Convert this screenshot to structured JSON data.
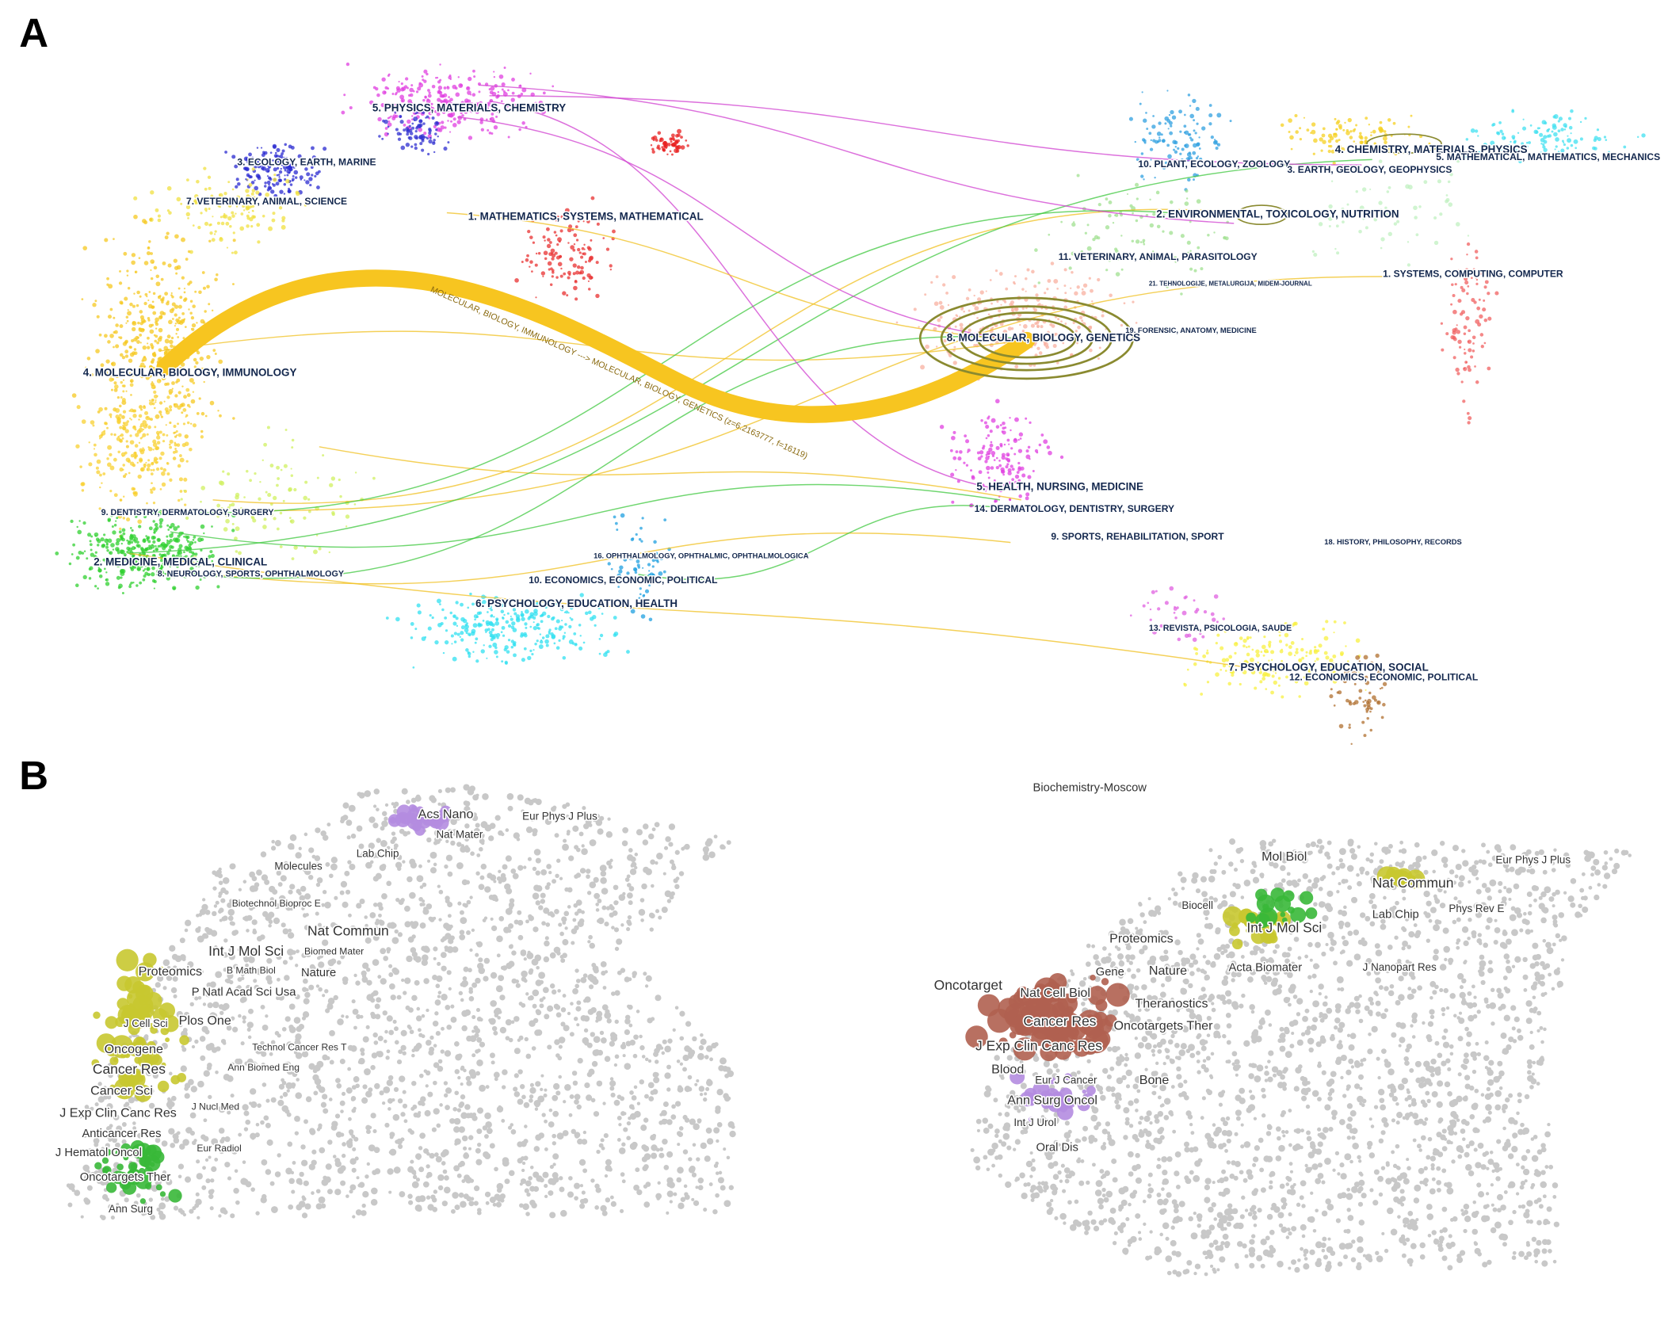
{
  "panel_a": {
    "label": "A",
    "left_clusters": [
      "5. PHYSICS, MATERIALS, CHEMISTRY",
      "3. ECOLOGY, EARTH, MARINE",
      "7. VETERINARY, ANIMAL, SCIENCE",
      "1. MATHEMATICS, SYSTEMS, MATHEMATICAL",
      "4. MOLECULAR, BIOLOGY, IMMUNOLOGY",
      "9. DENTISTRY, DERMATOLOGY, SURGERY",
      "2. MEDICINE, MEDICAL, CLINICAL",
      "8. NEUROLOGY, SPORTS, OPHTHALMOLOGY",
      "16. OPHTHALMOLOGY, OPHTHALMIC, OPHTHALMOLOGICA",
      "10. ECONOMICS, ECONOMIC, POLITICAL",
      "6. PSYCHOLOGY, EDUCATION, HEALTH"
    ],
    "right_clusters": [
      "4. CHEMISTRY, MATERIALS, PHYSICS",
      "5. MATHEMATICAL, MATHEMATICS, MECHANICS",
      "10. PLANT, ECOLOGY, ZOOLOGY",
      "3. EARTH, GEOLOGY, GEOPHYSICS",
      "2. ENVIRONMENTAL, TOXICOLOGY, NUTRITION",
      "11. VETERINARY, ANIMAL, PARASITOLOGY",
      "21. TEHNOLOGIJE, METALURGIJA, MIDEM-JOURNAL",
      "1. SYSTEMS, COMPUTING, COMPUTER",
      "8. MOLECULAR, BIOLOGY, GENETICS",
      "19. FORENSIC, ANATOMY, MEDICINE",
      "5. HEALTH, NURSING, MEDICINE",
      "14. DERMATOLOGY, DENTISTRY, SURGERY",
      "9. SPORTS, REHABILITATION, SPORT",
      "18. HISTORY, PHILOSOPHY, RECORDS",
      "13. REVISTA, PSICOLOGIA, SAUDE",
      "7. PSYCHOLOGY, EDUCATION, SOCIAL",
      "12. ECONOMICS, ECONOMIC, POLITICAL"
    ],
    "link_label": "MOLECULAR, BIOLOGY, IMMUNOLOGY ---> MOLECULAR, BIOLOGY, GENETICS (z=6.2163777, f=16119)"
  },
  "panel_b": {
    "label": "B",
    "left_journals": [
      "Acs Nano",
      "Eur Phys J Plus",
      "Nat Mater",
      "Lab Chip",
      "Molecules",
      "Biotechnol Bioproc E",
      "Nat Commun",
      "Int J Mol Sci",
      "Biomed Mater",
      "Proteomics",
      "B Math Biol",
      "Nature",
      "P Natl Acad Sci Usa",
      "Plos One",
      "J Cell Sci",
      "Oncogene",
      "Technol Cancer Res T",
      "Cancer Res",
      "Ann Biomed Eng",
      "Cancer Sci",
      "J Nucl Med",
      "J Exp Clin Canc Res",
      "Anticancer Res",
      "Eur Radiol",
      "J Hematol Oncol",
      "Oncotargets Ther",
      "Ann Surg"
    ],
    "right_journals": [
      "Biochemistry-Moscow",
      "Mol Biol",
      "Eur Phys J Plus",
      "Nat Commun",
      "Biocell",
      "Lab Chip",
      "Phys Rev E",
      "Int J Mol Sci",
      "Proteomics",
      "Gene",
      "Nature",
      "Acta Biomater",
      "J Nanopart Res",
      "Oncotarget",
      "Nat Cell Biol",
      "Theranostics",
      "Cancer Res",
      "Oncotargets Ther",
      "J Exp Clin Canc Res",
      "Blood",
      "Bone",
      "Eur J Cancer",
      "Ann Surg Oncol",
      "Int J Urol",
      "Oral Dis"
    ]
  }
}
